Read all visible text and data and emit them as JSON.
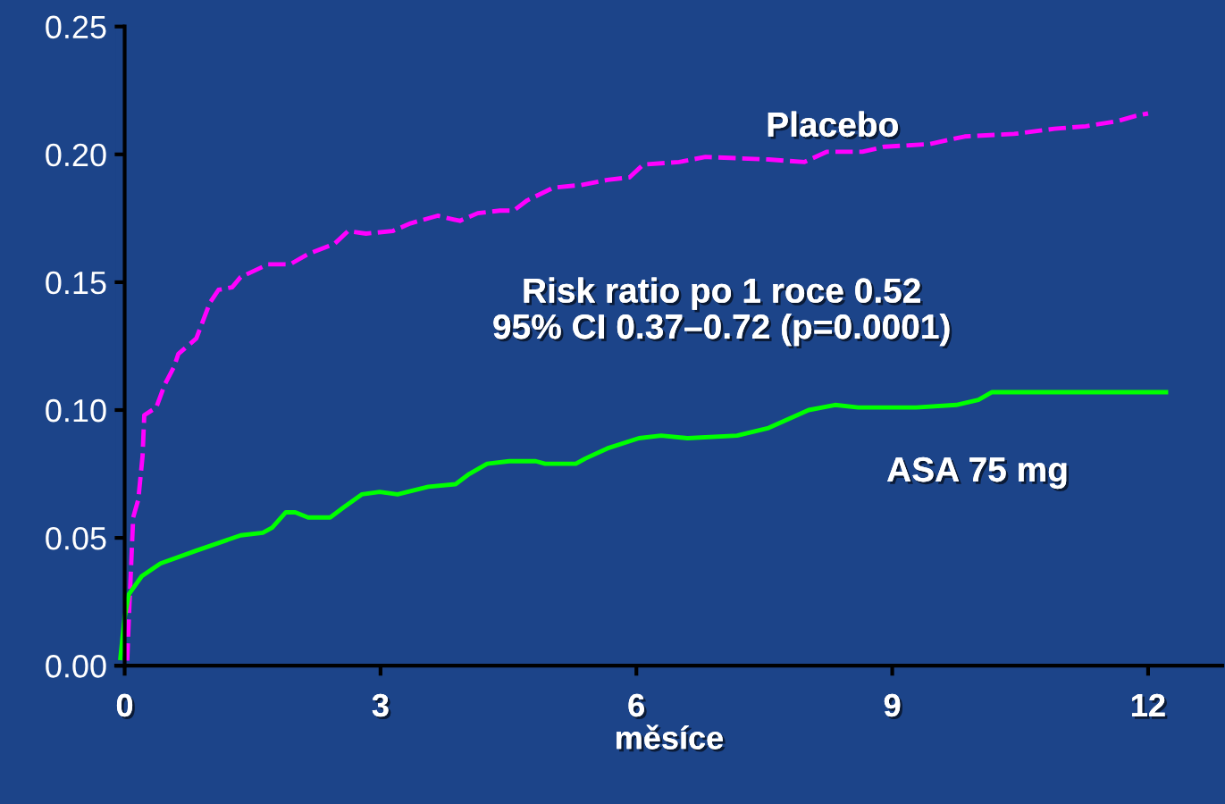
{
  "chart_data": {
    "type": "line",
    "xlabel": "měsíce",
    "annotations": [
      "Risk ratio po 1 roce 0.52\n95% CI 0.37–0.72 (p=0.0001)"
    ],
    "xlim": [
      -0.1,
      12.87
    ],
    "xticks": [
      0,
      3,
      6,
      9,
      12
    ],
    "ylim": [
      0,
      0.25
    ],
    "yticks": [
      {
        "value": 0,
        "label": "0.00"
      },
      {
        "value": 0.05,
        "label": "0.05"
      },
      {
        "value": 0.1,
        "label": "0.10"
      },
      {
        "value": 0.15,
        "label": "0.15"
      },
      {
        "value": 0.2,
        "label": "0.20"
      },
      {
        "value": 0.25,
        "label": "0.25"
      }
    ],
    "grid": false,
    "legend": false,
    "series": [
      {
        "name": "Placebo",
        "color": "#ff00ff",
        "line_style": "dashed",
        "x": [
          0.03,
          0.05,
          0.1,
          0.16,
          0.21,
          0.23,
          0.37,
          0.47,
          0.58,
          0.63,
          0.84,
          1.0,
          1.1,
          1.26,
          1.36,
          1.68,
          1.94,
          2.15,
          2.46,
          2.62,
          2.83,
          3.14,
          3.35,
          3.67,
          3.93,
          4.14,
          4.4,
          4.56,
          4.72,
          5.03,
          5.35,
          5.66,
          5.92,
          6.08,
          6.5,
          6.81,
          7.55,
          7.97,
          8.23,
          8.65,
          8.91,
          9.43,
          9.85,
          10.43,
          10.9,
          11.27,
          11.64,
          11.85,
          12.0
        ],
        "values": [
          0.002,
          0.019,
          0.058,
          0.065,
          0.082,
          0.098,
          0.101,
          0.11,
          0.117,
          0.122,
          0.128,
          0.142,
          0.147,
          0.148,
          0.152,
          0.157,
          0.157,
          0.161,
          0.165,
          0.17,
          0.169,
          0.17,
          0.173,
          0.176,
          0.174,
          0.177,
          0.178,
          0.178,
          0.182,
          0.187,
          0.188,
          0.19,
          0.191,
          0.196,
          0.197,
          0.199,
          0.198,
          0.197,
          0.201,
          0.201,
          0.203,
          0.204,
          0.207,
          0.208,
          0.21,
          0.211,
          0.213,
          0.215,
          0.216
        ]
      },
      {
        "name": "ASA 75 mg",
        "color": "#00ff00",
        "line_style": "solid",
        "x": [
          -0.05,
          0,
          0.05,
          0.2,
          0.42,
          0.84,
          1.36,
          1.62,
          1.73,
          1.89,
          2.0,
          2.15,
          2.41,
          2.57,
          2.78,
          2.99,
          3.2,
          3.56,
          3.88,
          4.04,
          4.25,
          4.51,
          4.82,
          4.93,
          5.29,
          5.4,
          5.66,
          6.03,
          6.29,
          6.6,
          7.18,
          7.55,
          8.02,
          8.33,
          8.6,
          9.28,
          9.75,
          10.01,
          10.17,
          10.43,
          12.21
        ],
        "values": [
          0.003,
          0.019,
          0.028,
          0.035,
          0.04,
          0.045,
          0.051,
          0.052,
          0.054,
          0.06,
          0.06,
          0.058,
          0.058,
          0.062,
          0.067,
          0.068,
          0.067,
          0.07,
          0.071,
          0.075,
          0.079,
          0.08,
          0.08,
          0.079,
          0.079,
          0.081,
          0.085,
          0.089,
          0.09,
          0.089,
          0.09,
          0.093,
          0.1,
          0.102,
          0.101,
          0.101,
          0.102,
          0.104,
          0.107,
          0.107,
          0.107
        ]
      }
    ]
  }
}
